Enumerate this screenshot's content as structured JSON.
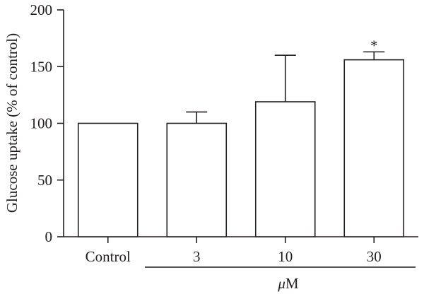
{
  "chart_data": {
    "type": "bar",
    "ylabel": "Glucose uptake (% of control)",
    "ylim": [
      0,
      200
    ],
    "yticks": [
      0,
      50,
      100,
      150,
      200
    ],
    "categories": [
      "Control",
      "3",
      "10",
      "30"
    ],
    "values": [
      100,
      100,
      119,
      156
    ],
    "error": [
      0,
      10,
      41,
      7
    ],
    "annotations": [
      "",
      "",
      "",
      "*"
    ],
    "group_label": {
      "mu": "μ",
      "unit": "M"
    },
    "bar_fill": "#ffffff",
    "stroke": "#231f20",
    "grid": false
  }
}
